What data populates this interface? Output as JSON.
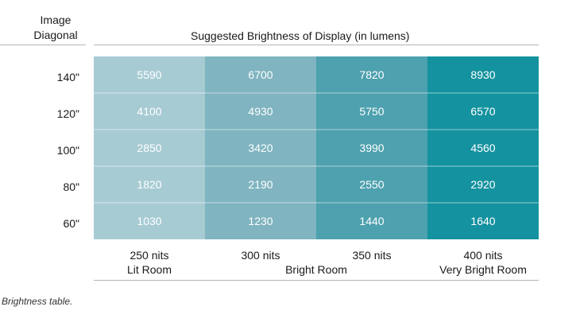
{
  "header": {
    "corner_line1": "Image",
    "corner_line2": "Diagonal",
    "title": "Suggested Brightness of Display (in lumens)"
  },
  "chart_data": {
    "type": "table",
    "title": "Suggested Brightness of Display (in lumens)",
    "row_header": "Image Diagonal",
    "rows": [
      "140\"",
      "120\"",
      "100\"",
      "80\"",
      "60\""
    ],
    "columns": [
      "250 nits",
      "300 nits",
      "350 nits",
      "400 nits"
    ],
    "column_groups": [
      "Lit Room",
      "Bright Room",
      "",
      "Very Bright Room"
    ],
    "values": [
      [
        5590,
        6700,
        7820,
        8930
      ],
      [
        4100,
        4930,
        5750,
        6570
      ],
      [
        2850,
        3420,
        3990,
        4560
      ],
      [
        1820,
        2190,
        2550,
        2920
      ],
      [
        1030,
        1230,
        1440,
        1640
      ]
    ],
    "column_colors": [
      "#a7cbd3",
      "#7fb4c0",
      "#4ea1ae",
      "#14929f"
    ]
  },
  "footnote": "Brightness table."
}
